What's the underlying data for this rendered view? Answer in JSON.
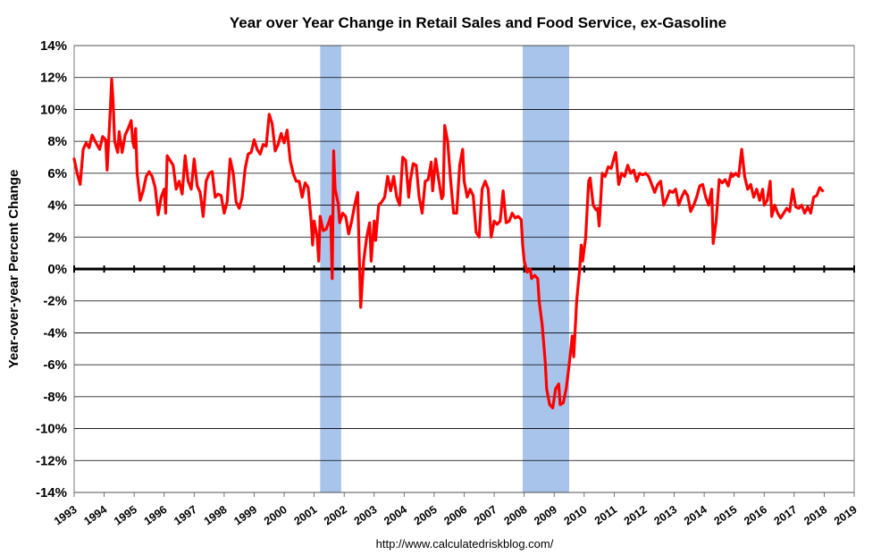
{
  "chart_data": {
    "type": "line",
    "title": "Year over Year Change in Retail Sales and Food Service, ex-Gasoline",
    "ylabel": "Year-over-year Percent Change",
    "xlabel": "",
    "source": "http://www.calculatedriskblog.com/",
    "xlim": [
      1993,
      2019
    ],
    "ylim": [
      -14,
      14
    ],
    "ytick_labels": [
      "14%",
      "12%",
      "10%",
      "8%",
      "6%",
      "4%",
      "2%",
      "0%",
      "-2%",
      "-4%",
      "-6%",
      "-8%",
      "-10%",
      "-12%",
      "-14%"
    ],
    "xtick_labels": [
      "1993",
      "1994",
      "1995",
      "1996",
      "1997",
      "1998",
      "1999",
      "2000",
      "2001",
      "2002",
      "2003",
      "2004",
      "2005",
      "2006",
      "2007",
      "2008",
      "2009",
      "2010",
      "2011",
      "2012",
      "2013",
      "2014",
      "2015",
      "2016",
      "2017",
      "2018",
      "2019"
    ],
    "grid": "horizontal",
    "line_color": "#ff0000",
    "recession_color": "#a9c4ea",
    "zero_line_color": "#000000",
    "recessions": [
      [
        2001.2,
        2001.9
      ],
      [
        2007.95,
        2009.5
      ]
    ],
    "series": [
      {
        "values": [
          [
            1993.0,
            6.9
          ],
          [
            1993.1,
            6.0
          ],
          [
            1993.2,
            5.3
          ],
          [
            1993.3,
            7.5
          ],
          [
            1993.4,
            7.9
          ],
          [
            1993.5,
            7.6
          ],
          [
            1993.6,
            8.4
          ],
          [
            1993.7,
            8.0
          ],
          [
            1993.85,
            7.5
          ],
          [
            1993.95,
            8.3
          ],
          [
            1994.05,
            8.1
          ],
          [
            1994.1,
            6.2
          ],
          [
            1994.2,
            9.8
          ],
          [
            1994.25,
            11.9
          ],
          [
            1994.3,
            10.5
          ],
          [
            1994.35,
            8.0
          ],
          [
            1994.45,
            7.3
          ],
          [
            1994.5,
            8.6
          ],
          [
            1994.6,
            7.3
          ],
          [
            1994.7,
            8.4
          ],
          [
            1994.8,
            8.8
          ],
          [
            1994.9,
            9.3
          ],
          [
            1994.95,
            8.0
          ],
          [
            1995.0,
            7.6
          ],
          [
            1995.05,
            8.8
          ],
          [
            1995.1,
            6.0
          ],
          [
            1995.2,
            4.3
          ],
          [
            1995.3,
            4.9
          ],
          [
            1995.4,
            5.8
          ],
          [
            1995.5,
            6.1
          ],
          [
            1995.6,
            5.8
          ],
          [
            1995.7,
            5.1
          ],
          [
            1995.8,
            3.4
          ],
          [
            1995.9,
            4.5
          ],
          [
            1996.0,
            5.0
          ],
          [
            1996.05,
            3.5
          ],
          [
            1996.1,
            7.1
          ],
          [
            1996.2,
            6.8
          ],
          [
            1996.3,
            6.5
          ],
          [
            1996.4,
            5.0
          ],
          [
            1996.5,
            5.5
          ],
          [
            1996.6,
            4.7
          ],
          [
            1996.7,
            7.1
          ],
          [
            1996.8,
            5.5
          ],
          [
            1996.9,
            5.0
          ],
          [
            1997.0,
            6.9
          ],
          [
            1997.1,
            5.2
          ],
          [
            1997.2,
            4.8
          ],
          [
            1997.3,
            3.3
          ],
          [
            1997.4,
            5.5
          ],
          [
            1997.5,
            6.0
          ],
          [
            1997.6,
            6.1
          ],
          [
            1997.7,
            4.5
          ],
          [
            1997.8,
            4.7
          ],
          [
            1997.9,
            4.6
          ],
          [
            1998.0,
            3.5
          ],
          [
            1998.1,
            4.2
          ],
          [
            1998.2,
            6.9
          ],
          [
            1998.3,
            6.0
          ],
          [
            1998.4,
            4.2
          ],
          [
            1998.5,
            3.8
          ],
          [
            1998.6,
            4.5
          ],
          [
            1998.7,
            6.3
          ],
          [
            1998.8,
            7.2
          ],
          [
            1998.9,
            7.3
          ],
          [
            1999.0,
            8.1
          ],
          [
            1999.1,
            7.5
          ],
          [
            1999.2,
            7.2
          ],
          [
            1999.3,
            7.8
          ],
          [
            1999.4,
            7.7
          ],
          [
            1999.5,
            9.7
          ],
          [
            1999.6,
            9.1
          ],
          [
            1999.7,
            7.4
          ],
          [
            1999.8,
            7.8
          ],
          [
            1999.9,
            8.5
          ],
          [
            2000.0,
            7.9
          ],
          [
            2000.1,
            8.7
          ],
          [
            2000.2,
            6.8
          ],
          [
            2000.3,
            6.0
          ],
          [
            2000.4,
            5.5
          ],
          [
            2000.5,
            5.5
          ],
          [
            2000.6,
            4.5
          ],
          [
            2000.7,
            5.4
          ],
          [
            2000.8,
            5.1
          ],
          [
            2000.9,
            3.0
          ],
          [
            2000.95,
            1.5
          ],
          [
            2001.0,
            3.0
          ],
          [
            2001.1,
            2.0
          ],
          [
            2001.15,
            0.5
          ],
          [
            2001.2,
            3.3
          ],
          [
            2001.3,
            2.4
          ],
          [
            2001.4,
            2.5
          ],
          [
            2001.5,
            3.0
          ],
          [
            2001.55,
            3.3
          ],
          [
            2001.6,
            -0.6
          ],
          [
            2001.65,
            7.4
          ],
          [
            2001.7,
            5.0
          ],
          [
            2001.8,
            4.1
          ],
          [
            2001.85,
            2.9
          ],
          [
            2001.95,
            3.5
          ],
          [
            2002.05,
            3.3
          ],
          [
            2002.15,
            2.2
          ],
          [
            2002.25,
            3.0
          ],
          [
            2002.35,
            4.0
          ],
          [
            2002.45,
            4.8
          ],
          [
            2002.5,
            1.0
          ],
          [
            2002.55,
            -2.4
          ],
          [
            2002.65,
            0.5
          ],
          [
            2002.75,
            2.0
          ],
          [
            2002.85,
            2.9
          ],
          [
            2002.9,
            0.5
          ],
          [
            2003.0,
            3.0
          ],
          [
            2003.05,
            1.8
          ],
          [
            2003.15,
            4.0
          ],
          [
            2003.25,
            4.2
          ],
          [
            2003.35,
            4.5
          ],
          [
            2003.45,
            5.8
          ],
          [
            2003.55,
            4.9
          ],
          [
            2003.65,
            5.8
          ],
          [
            2003.75,
            4.5
          ],
          [
            2003.85,
            4.0
          ],
          [
            2003.95,
            7.0
          ],
          [
            2004.05,
            6.8
          ],
          [
            2004.15,
            4.5
          ],
          [
            2004.2,
            5.5
          ],
          [
            2004.3,
            6.6
          ],
          [
            2004.4,
            6.5
          ],
          [
            2004.5,
            4.5
          ],
          [
            2004.6,
            3.5
          ],
          [
            2004.7,
            5.5
          ],
          [
            2004.8,
            5.6
          ],
          [
            2004.9,
            6.7
          ],
          [
            2004.95,
            4.9
          ],
          [
            2005.05,
            6.9
          ],
          [
            2005.15,
            5.6
          ],
          [
            2005.25,
            4.4
          ],
          [
            2005.3,
            4.6
          ],
          [
            2005.35,
            9.0
          ],
          [
            2005.45,
            8.0
          ],
          [
            2005.55,
            5.5
          ],
          [
            2005.65,
            3.5
          ],
          [
            2005.75,
            3.5
          ],
          [
            2005.85,
            6.5
          ],
          [
            2005.95,
            7.5
          ],
          [
            2006.0,
            5.5
          ],
          [
            2006.1,
            4.5
          ],
          [
            2006.2,
            5.0
          ],
          [
            2006.3,
            4.6
          ],
          [
            2006.4,
            2.3
          ],
          [
            2006.5,
            2.0
          ],
          [
            2006.6,
            5.0
          ],
          [
            2006.7,
            5.5
          ],
          [
            2006.8,
            5.0
          ],
          [
            2006.9,
            2.0
          ],
          [
            2007.0,
            3.0
          ],
          [
            2007.1,
            2.8
          ],
          [
            2007.2,
            3.0
          ],
          [
            2007.3,
            4.9
          ],
          [
            2007.4,
            2.9
          ],
          [
            2007.5,
            3.0
          ],
          [
            2007.6,
            3.5
          ],
          [
            2007.7,
            3.2
          ],
          [
            2007.8,
            3.3
          ],
          [
            2007.9,
            3.1
          ],
          [
            2007.95,
            1.5
          ],
          [
            2008.0,
            0.5
          ],
          [
            2008.1,
            -0.2
          ],
          [
            2008.2,
            0.0
          ],
          [
            2008.25,
            -0.6
          ],
          [
            2008.35,
            -0.4
          ],
          [
            2008.45,
            -0.6
          ],
          [
            2008.5,
            -2.0
          ],
          [
            2008.6,
            -3.5
          ],
          [
            2008.7,
            -5.8
          ],
          [
            2008.75,
            -7.5
          ],
          [
            2008.85,
            -8.5
          ],
          [
            2008.95,
            -8.7
          ],
          [
            2009.05,
            -7.5
          ],
          [
            2009.15,
            -7.2
          ],
          [
            2009.2,
            -8.5
          ],
          [
            2009.3,
            -8.4
          ],
          [
            2009.4,
            -7.5
          ],
          [
            2009.5,
            -6.0
          ],
          [
            2009.6,
            -4.2
          ],
          [
            2009.65,
            -5.5
          ],
          [
            2009.75,
            -2.0
          ],
          [
            2009.85,
            0.0
          ],
          [
            2009.9,
            1.5
          ],
          [
            2009.95,
            0.5
          ],
          [
            2010.05,
            2.0
          ],
          [
            2010.15,
            5.5
          ],
          [
            2010.2,
            5.7
          ],
          [
            2010.3,
            4.0
          ],
          [
            2010.4,
            3.7
          ],
          [
            2010.45,
            3.8
          ],
          [
            2010.5,
            2.7
          ],
          [
            2010.6,
            6.0
          ],
          [
            2010.7,
            5.8
          ],
          [
            2010.8,
            6.4
          ],
          [
            2010.9,
            6.3
          ],
          [
            2011.0,
            7.0
          ],
          [
            2011.05,
            7.3
          ],
          [
            2011.15,
            5.3
          ],
          [
            2011.25,
            6.0
          ],
          [
            2011.35,
            5.8
          ],
          [
            2011.45,
            6.5
          ],
          [
            2011.55,
            6.0
          ],
          [
            2011.65,
            6.2
          ],
          [
            2011.75,
            5.5
          ],
          [
            2011.85,
            6.0
          ],
          [
            2011.95,
            5.9
          ],
          [
            2012.05,
            6.0
          ],
          [
            2012.15,
            5.8
          ],
          [
            2012.25,
            5.3
          ],
          [
            2012.35,
            4.8
          ],
          [
            2012.45,
            5.3
          ],
          [
            2012.55,
            5.5
          ],
          [
            2012.65,
            4.0
          ],
          [
            2012.75,
            4.4
          ],
          [
            2012.85,
            4.9
          ],
          [
            2012.95,
            4.8
          ],
          [
            2013.05,
            5.0
          ],
          [
            2013.15,
            4.0
          ],
          [
            2013.25,
            4.5
          ],
          [
            2013.35,
            4.9
          ],
          [
            2013.45,
            4.6
          ],
          [
            2013.55,
            3.6
          ],
          [
            2013.65,
            4.0
          ],
          [
            2013.75,
            4.5
          ],
          [
            2013.85,
            5.2
          ],
          [
            2013.95,
            5.3
          ],
          [
            2014.05,
            4.5
          ],
          [
            2014.15,
            4.0
          ],
          [
            2014.25,
            5.0
          ],
          [
            2014.3,
            1.6
          ],
          [
            2014.4,
            3.0
          ],
          [
            2014.5,
            5.6
          ],
          [
            2014.6,
            5.4
          ],
          [
            2014.7,
            5.6
          ],
          [
            2014.8,
            5.2
          ],
          [
            2014.9,
            6.0
          ],
          [
            2014.95,
            5.8
          ],
          [
            2015.05,
            6.0
          ],
          [
            2015.15,
            5.8
          ],
          [
            2015.25,
            7.5
          ],
          [
            2015.35,
            5.8
          ],
          [
            2015.45,
            5.0
          ],
          [
            2015.55,
            5.3
          ],
          [
            2015.65,
            4.5
          ],
          [
            2015.75,
            5.0
          ],
          [
            2015.85,
            4.3
          ],
          [
            2015.95,
            5.0
          ],
          [
            2016.0,
            4.0
          ],
          [
            2016.1,
            4.3
          ],
          [
            2016.2,
            5.5
          ],
          [
            2016.25,
            3.3
          ],
          [
            2016.35,
            4.0
          ],
          [
            2016.45,
            3.5
          ],
          [
            2016.55,
            3.2
          ],
          [
            2016.65,
            3.5
          ],
          [
            2016.75,
            3.8
          ],
          [
            2016.85,
            3.6
          ],
          [
            2016.95,
            5.0
          ],
          [
            2017.05,
            3.9
          ],
          [
            2017.15,
            3.8
          ],
          [
            2017.25,
            4.0
          ],
          [
            2017.35,
            3.5
          ],
          [
            2017.45,
            3.9
          ],
          [
            2017.55,
            3.5
          ],
          [
            2017.65,
            4.5
          ],
          [
            2017.75,
            4.6
          ],
          [
            2017.85,
            5.1
          ],
          [
            2017.95,
            4.9
          ]
        ]
      }
    ]
  }
}
